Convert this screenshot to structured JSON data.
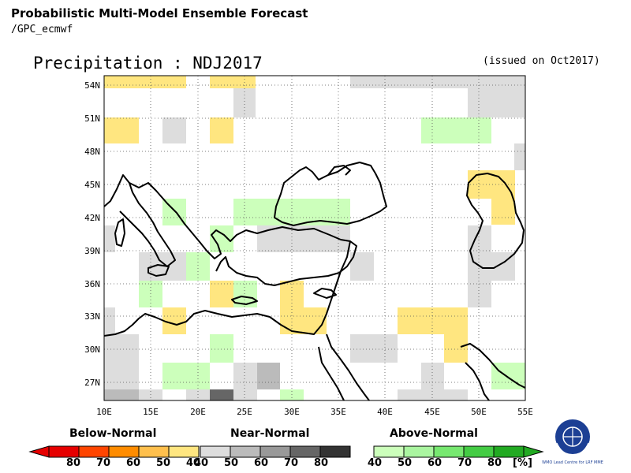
{
  "header": {
    "title": "Probabilistic Multi-Model Ensemble Forecast",
    "subtitle": "/GPC_ecmwf",
    "plot_title": "Precipitation : NDJ2017",
    "issued": "(issued on Oct2017)"
  },
  "map": {
    "lon_range": [
      10,
      55
    ],
    "lat_range": [
      25,
      55
    ],
    "lon_ticks": [
      "10E",
      "15E",
      "20E",
      "25E",
      "30E",
      "35E",
      "40E",
      "45E",
      "50E",
      "55E"
    ],
    "lat_ticks": [
      "27N",
      "30N",
      "33N",
      "36N",
      "39N",
      "42N",
      "45N",
      "48N",
      "51N",
      "54N"
    ],
    "grid": "dotted"
  },
  "colorbar": {
    "below": {
      "title": "Below-Normal",
      "labels": [
        "80",
        "70",
        "60",
        "50",
        "40"
      ],
      "colors": [
        "#e60000",
        "#ff4500",
        "#ff8c00",
        "#ffc04d",
        "#ffe680"
      ]
    },
    "near": {
      "title": "Near-Normal",
      "labels": [
        "40",
        "50",
        "60",
        "70",
        "80"
      ],
      "colors": [
        "#dddddd",
        "#bbbbbb",
        "#999999",
        "#666666",
        "#333333"
      ]
    },
    "above": {
      "title": "Above-Normal",
      "labels": [
        "40",
        "50",
        "60",
        "70",
        "80"
      ],
      "colors": [
        "#ccffbb",
        "#aaf5a0",
        "#77e870",
        "#44cc44",
        "#22aa22"
      ]
    },
    "unit": "[%]"
  },
  "logo": {
    "text": "WMO Lead Centre for LRF MME"
  }
}
